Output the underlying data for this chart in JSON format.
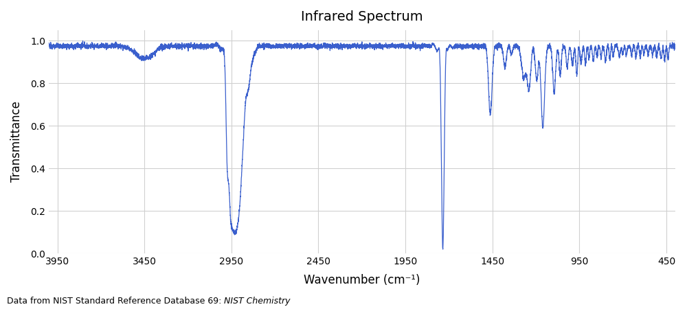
{
  "title": "Infrared Spectrum",
  "xlabel": "Wavenumber (cm⁻¹)",
  "ylabel": "Transmittance",
  "footnote": "Data from NIST Standard Reference Database 69: ",
  "footnote_italic": "NIST Chemistry",
  "xlim": [
    4000,
    400
  ],
  "ylim": [
    0,
    1.05
  ],
  "xticks": [
    3950,
    3450,
    2950,
    2450,
    1950,
    1450,
    950,
    450
  ],
  "yticks": [
    0,
    0.2,
    0.4,
    0.6,
    0.8,
    1.0
  ],
  "line_color": "#3a5fcd",
  "background_color": "#ffffff",
  "grid_color": "#d0d0d0",
  "title_fontsize": 14,
  "label_fontsize": 12,
  "tick_fontsize": 10,
  "footnote_fontsize": 9
}
